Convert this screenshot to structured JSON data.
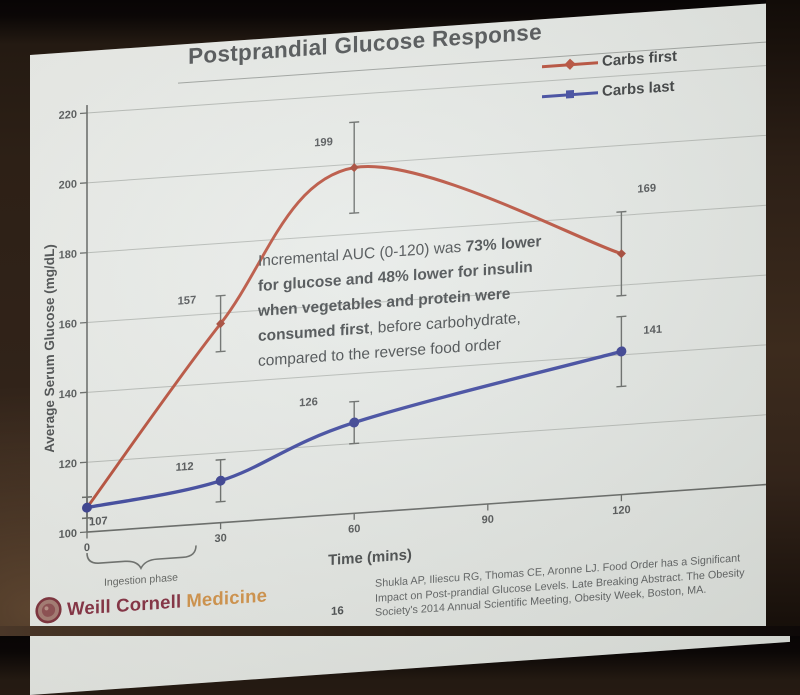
{
  "slide": {
    "title": "Postprandial Glucose Response",
    "ingestion_phase_label": "Ingestion phase",
    "annotation_lines": [
      [
        {
          "text": "Incremental AUC (0-120) was ",
          "bold": false
        },
        {
          "text": "73% lower",
          "bold": true
        }
      ],
      [
        {
          "text": "for glucose and 48% lower for insulin",
          "bold": true
        }
      ],
      [
        {
          "text": "when vegetables and protein were",
          "bold": true
        }
      ],
      [
        {
          "text": "consumed first",
          "bold": true
        },
        {
          "text": ", before carbohydrate,",
          "bold": false
        }
      ],
      [
        {
          "text": "compared to the reverse food order",
          "bold": false
        }
      ]
    ],
    "footer": {
      "page_number": "16",
      "citation_lines": [
        "Shukla AP, Iliescu RG, Thomas CE, Aronne LJ. Food Order has a Significant",
        "Impact on Post-prandial Glucose Levels. Late Breaking Abstract. The Obesity",
        "Society's 2014 Annual Scientific Meeting, Obesity Week, Boston, MA."
      ],
      "logo": {
        "seal_icon": "weill-cornell-seal",
        "name_primary": "Weill Cornell",
        "name_secondary": "Medicine",
        "primary_color": "#7c2136",
        "secondary_color": "#cf8c3e"
      }
    }
  },
  "chart_data": {
    "type": "line",
    "title": "Postprandial Glucose Response",
    "xlabel": "Time (mins)",
    "ylabel": "Average Serum Glucose (mg/dL)",
    "x": [
      0,
      30,
      60,
      120
    ],
    "x_ticks": [
      0,
      30,
      60,
      90,
      120
    ],
    "xlim": [
      0,
      153
    ],
    "y_ticks": [
      100,
      120,
      140,
      160,
      180,
      200,
      220
    ],
    "ylim": [
      100,
      220
    ],
    "grid": "horizontal",
    "legend_position": "top-right",
    "error_bars": true,
    "series": [
      {
        "name": "Carbs first",
        "color": "#b2402b",
        "marker": "diamond",
        "values": [
          107,
          157,
          199,
          169
        ],
        "errors": [
          3,
          8,
          13,
          12
        ]
      },
      {
        "name": "Carbs last",
        "color": "#2f3a99",
        "marker": "circle",
        "values": [
          107,
          112,
          126,
          141
        ],
        "errors": [
          3,
          6,
          6,
          10
        ]
      }
    ],
    "point_labels": {
      "carbs_first": [
        "",
        "157",
        "199",
        "169"
      ],
      "carbs_last": [
        "107",
        "112",
        "126",
        "141"
      ]
    }
  }
}
